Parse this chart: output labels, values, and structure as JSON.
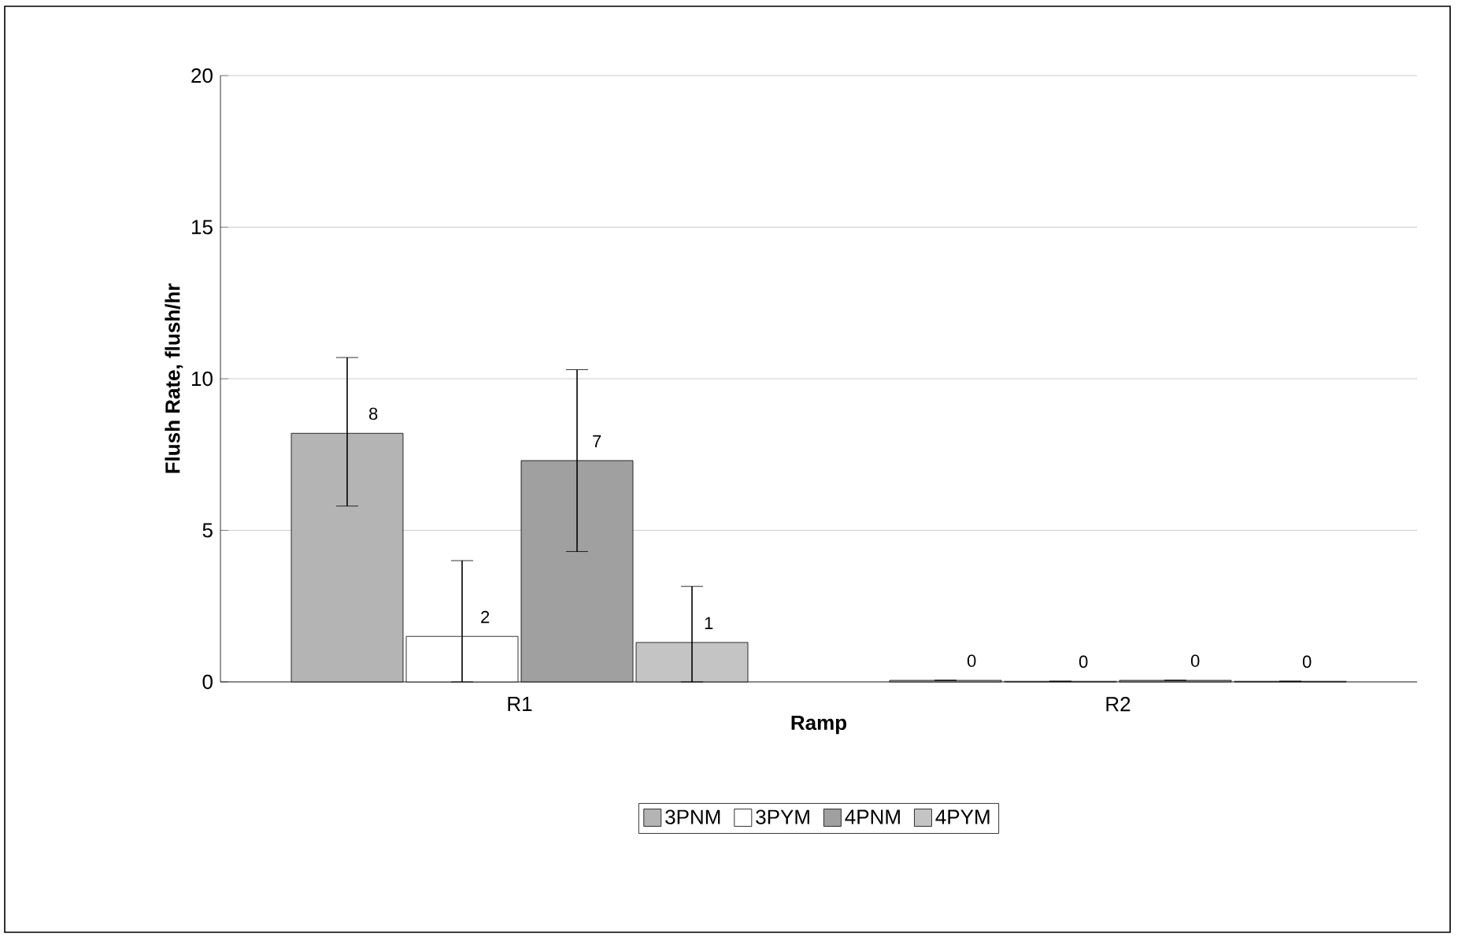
{
  "chart_data": {
    "type": "bar",
    "xlabel": "Ramp",
    "ylabel": "Flush Rate, flush/hr",
    "categories": [
      "R1",
      "R2"
    ],
    "series": [
      {
        "name": "3PNM",
        "color": "#b4b4b4",
        "values": [
          8.2,
          0.05
        ],
        "errors": [
          [
            5.8,
            10.7
          ],
          null
        ],
        "value_labels": [
          "8",
          "0"
        ]
      },
      {
        "name": "3PYM",
        "color": "#ffffff",
        "values": [
          1.5,
          0.02
        ],
        "errors": [
          [
            0,
            4.0
          ],
          null
        ],
        "value_labels": [
          "2",
          "0"
        ]
      },
      {
        "name": "4PNM",
        "color": "#a0a0a0",
        "values": [
          7.3,
          0.05
        ],
        "errors": [
          [
            4.3,
            10.3
          ],
          null
        ],
        "value_labels": [
          "7",
          "0"
        ]
      },
      {
        "name": "4PYM",
        "color": "#c4c4c4",
        "values": [
          1.3,
          0.02
        ],
        "errors": [
          [
            0,
            3.15
          ],
          null
        ],
        "value_labels": [
          "1",
          "0"
        ]
      }
    ],
    "ylim": [
      0,
      20
    ],
    "yticks": [
      0,
      5,
      10,
      15,
      20
    ],
    "grid": "y",
    "legend": "bottom"
  }
}
